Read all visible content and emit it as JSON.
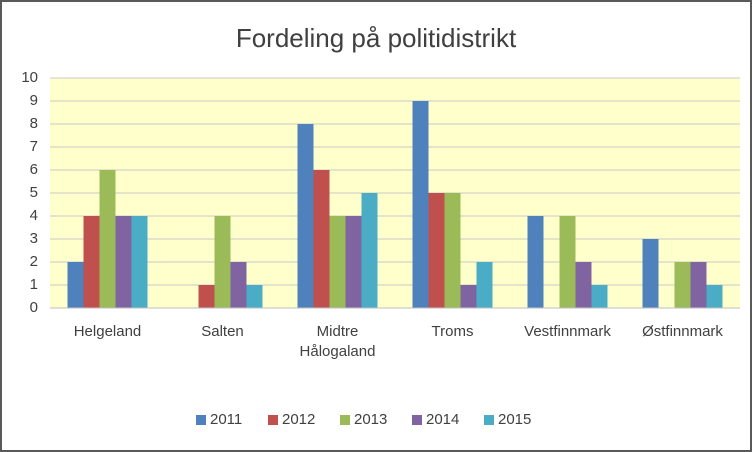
{
  "chart_data": {
    "type": "bar",
    "title": "Fordeling på politidistrikt",
    "categories": [
      "Helgeland",
      "Salten",
      "Midtre Hålogaland",
      "Troms",
      "Vestfinnmark",
      "Østfinnmark"
    ],
    "series": [
      {
        "name": "2011",
        "color": "#4f81bd",
        "values": [
          2,
          0,
          8,
          9,
          4,
          3
        ]
      },
      {
        "name": "2012",
        "color": "#c0504d",
        "values": [
          4,
          1,
          6,
          5,
          0,
          0
        ]
      },
      {
        "name": "2013",
        "color": "#9bbb59",
        "values": [
          6,
          4,
          4,
          5,
          4,
          2
        ]
      },
      {
        "name": "2014",
        "color": "#8064a2",
        "values": [
          4,
          2,
          4,
          1,
          2,
          2
        ]
      },
      {
        "name": "2015",
        "color": "#4bacc6",
        "values": [
          4,
          1,
          5,
          2,
          1,
          1
        ]
      }
    ],
    "ylim": [
      0,
      10
    ],
    "yticks": [
      0,
      1,
      2,
      3,
      4,
      5,
      6,
      7,
      8,
      9,
      10
    ],
    "grid": true,
    "plot_background": "#ffffcc",
    "legend": "bottom"
  }
}
